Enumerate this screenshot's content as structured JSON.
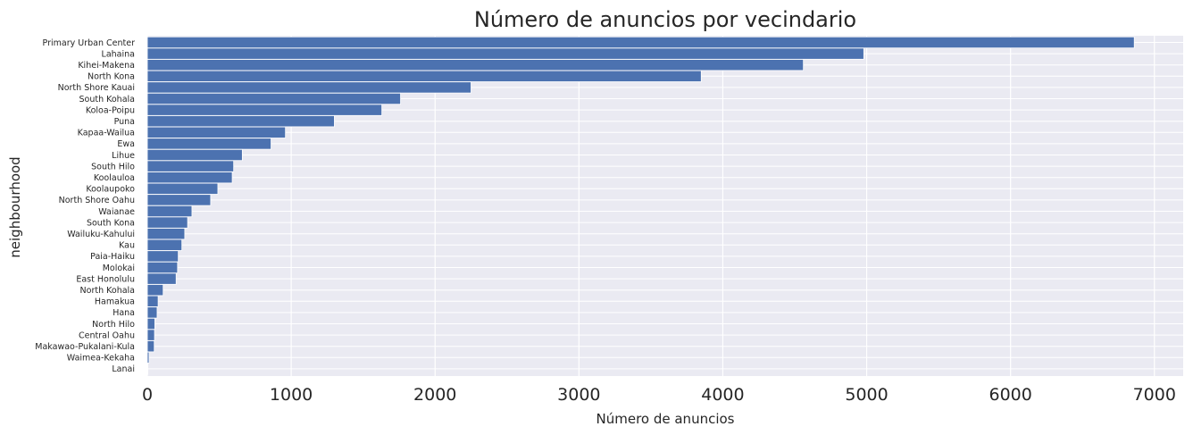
{
  "chart_data": {
    "type": "bar",
    "orientation": "horizontal",
    "title": "Número de anuncios por vecindario",
    "xlabel": "Número de anuncios",
    "ylabel": "neighbourhood",
    "xlim": [
      0,
      7200
    ],
    "xticks": [
      "0",
      "1000",
      "2000",
      "3000",
      "4000",
      "5000",
      "6000",
      "7000"
    ],
    "grid": true,
    "bar_color": "#4c72b0",
    "background_color": "#eaeaf2",
    "categories": [
      "Primary Urban Center",
      "Lahaina",
      "Kihei-Makena",
      "North Kona",
      "North Shore Kauai",
      "South Kohala",
      "Koloa-Poipu",
      "Puna",
      "Kapaa-Wailua",
      "Ewa",
      "Lihue",
      "South Hilo",
      "Koolauloa",
      "Koolaupoko",
      "North Shore Oahu",
      "Waianae",
      "South Kona",
      "Wailuku-Kahului",
      "Kau",
      "Paia-Haiku",
      "Molokai",
      "East Honolulu",
      "North Kohala",
      "Hamakua",
      "Hana",
      "North Hilo",
      "Central Oahu",
      "Makawao-Pukalani-Kula",
      "Waimea-Kekaha",
      "Lanai"
    ],
    "values": [
      6860,
      4980,
      4560,
      3850,
      2250,
      1760,
      1630,
      1300,
      960,
      860,
      660,
      600,
      590,
      490,
      440,
      310,
      280,
      260,
      240,
      215,
      210,
      200,
      110,
      75,
      68,
      52,
      50,
      48,
      12,
      3
    ]
  }
}
